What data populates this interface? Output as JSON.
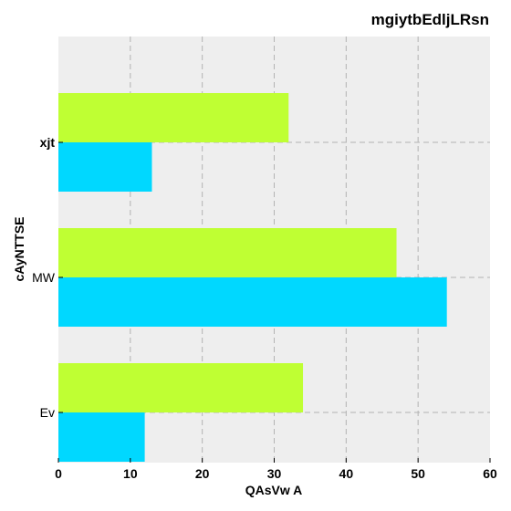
{
  "chart_data": {
    "type": "bar",
    "orientation": "horizontal",
    "title": "mgiytbEdljLRsn",
    "xlabel": "QAsVw A",
    "ylabel": "cAyNTTSE",
    "categories": [
      "xjt",
      "MW",
      "Ev"
    ],
    "category_label_weights": [
      "bold",
      "normal",
      "normal"
    ],
    "series": [
      {
        "values": [
          32,
          47,
          34
        ],
        "color": "#bfff33"
      },
      {
        "values": [
          13,
          54,
          12
        ],
        "color": "#00d8ff"
      }
    ],
    "xlim": [
      0,
      60
    ],
    "xticks": [
      0,
      10,
      20,
      30,
      40,
      50,
      60
    ],
    "grid": true,
    "background": "#eeeeee"
  }
}
